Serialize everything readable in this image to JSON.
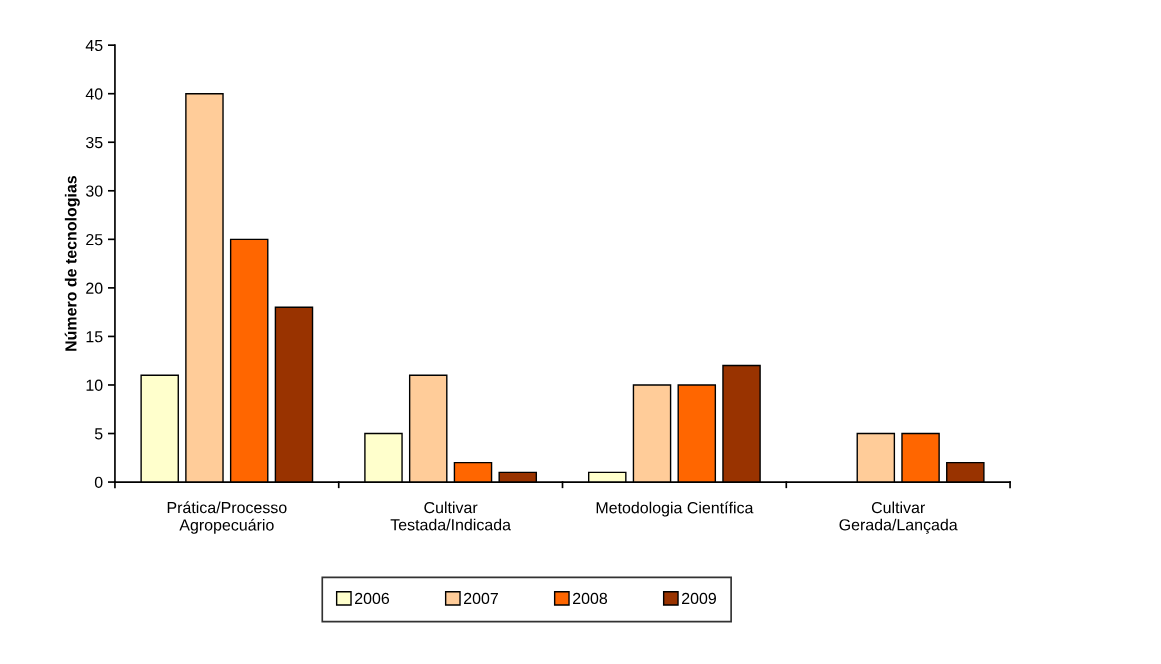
{
  "chart_data": {
    "type": "bar",
    "ylabel": "Número de tecnologias",
    "categories": [
      "Prática/Processo\nAgropecuário",
      "Cultivar\nTestada/Indicada",
      "Metodologia Científica",
      "Cultivar\nGerada/Lançada"
    ],
    "series": [
      {
        "name": "2006",
        "color": "#ffffcc",
        "values": [
          11,
          5,
          1,
          null
        ]
      },
      {
        "name": "2007",
        "color": "#ffcc99",
        "values": [
          40,
          11,
          10,
          5
        ]
      },
      {
        "name": "2008",
        "color": "#ff6600",
        "values": [
          25,
          2,
          10,
          5
        ]
      },
      {
        "name": "2009",
        "color": "#993300",
        "values": [
          18,
          1,
          12,
          2
        ]
      }
    ],
    "ylim": [
      0,
      45
    ],
    "yticks": [
      0,
      5,
      10,
      15,
      20,
      25,
      30,
      35,
      40,
      45
    ],
    "grid": false,
    "legend": "bottom"
  }
}
